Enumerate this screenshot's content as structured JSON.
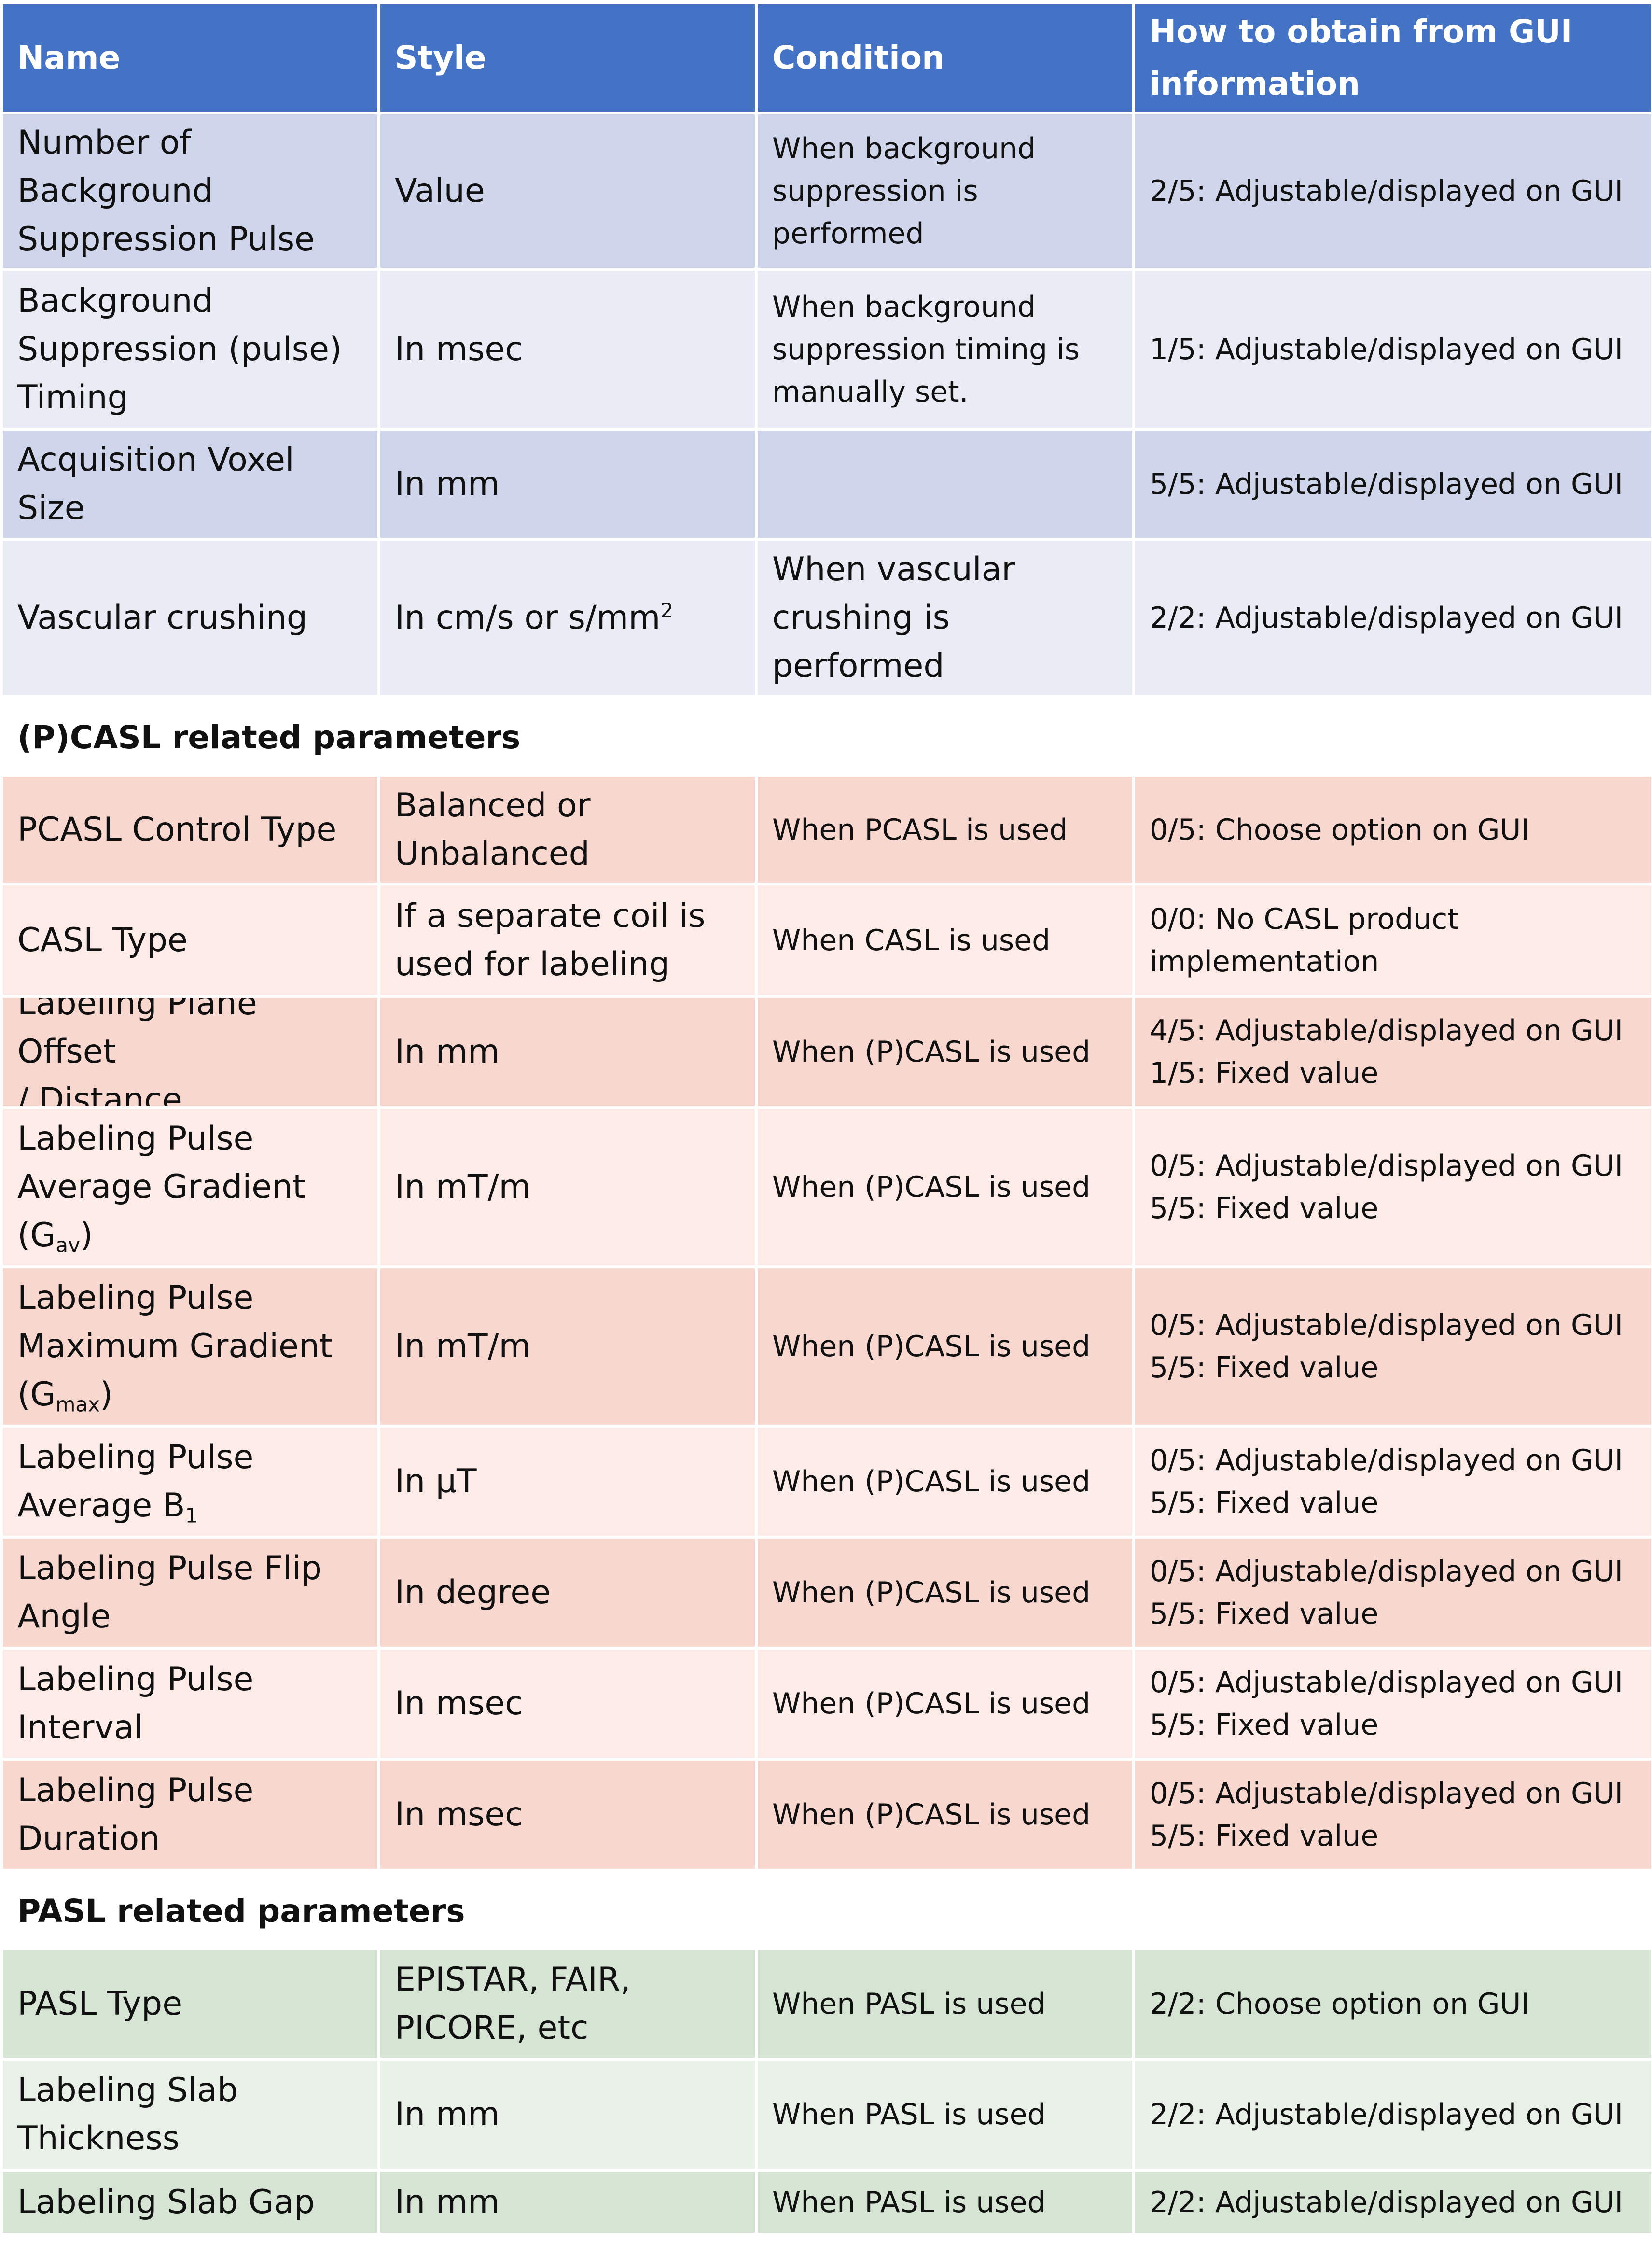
{
  "headers": [
    "Name",
    "Style",
    "Condition",
    "How to obtain from GUI information"
  ],
  "rows1": [
    {
      "name": "Number of\nBackground\nSuppression Pulse",
      "style": "Value",
      "condition": "When background\nsuppression is\nperformed",
      "how": "2/5: Adjustable/displayed on GUI"
    },
    {
      "name": "Background\nSuppression (pulse)\nTiming",
      "style": "In msec",
      "condition": "When background\nsuppression timing is\nmanually set.",
      "how": "1/5: Adjustable/displayed on GUI"
    },
    {
      "name": "Acquisition Voxel\nSize",
      "style": "In mm",
      "condition": "",
      "how": "5/5: Adjustable/displayed on GUI"
    },
    {
      "name": "Vascular crushing",
      "style": "In cm/s or s/mm",
      "style_sup": "2",
      "condition": "When vascular\ncrushing is\nperformed",
      "how": "2/2: Adjustable/displayed on GUI"
    }
  ],
  "section_pcasl": "(P)CASL related parameters",
  "rows2": [
    {
      "name": "PCASL Control Type",
      "style": "Balanced or\nUnbalanced",
      "condition": "When PCASL is used",
      "how": "0/5: Choose option on GUI"
    },
    {
      "name": "CASL Type",
      "style": "If a separate coil is\nused for labeling",
      "condition": "When CASL is used",
      "how": "0/0: No CASL product\nimplementation"
    },
    {
      "name": "Labeling Plane Offset\n/ Distance",
      "style": "In mm",
      "condition": "When (P)CASL is used",
      "how": "4/5: Adjustable/displayed on GUI\n1/5: Fixed value"
    },
    {
      "name_pre": "Labeling Pulse\nAverage Gradient\n(G",
      "name_sub": "av",
      "name_post": ")",
      "style": "In mT/m",
      "condition": "When (P)CASL is used",
      "how": "0/5: Adjustable/displayed on GUI\n5/5: Fixed value"
    },
    {
      "name_pre": "Labeling Pulse\nMaximum Gradient\n(G",
      "name_sub": "max",
      "name_post": ")",
      "style": "In mT/m",
      "condition": "When (P)CASL is used",
      "how": "0/5: Adjustable/displayed on GUI\n5/5: Fixed value"
    },
    {
      "name_pre": "Labeling Pulse\nAverage B",
      "name_sub": "1",
      "name_post": "",
      "style": "In µT",
      "condition": "When (P)CASL is used",
      "how": "0/5: Adjustable/displayed on GUI\n5/5: Fixed value"
    },
    {
      "name": "Labeling Pulse Flip\nAngle",
      "style": "In degree",
      "condition": "When (P)CASL is used",
      "how": "0/5: Adjustable/displayed on GUI\n5/5: Fixed value"
    },
    {
      "name": "Labeling Pulse\nInterval",
      "style": "In msec",
      "condition": "When (P)CASL is used",
      "how": "0/5: Adjustable/displayed on GUI\n5/5: Fixed value"
    },
    {
      "name": "Labeling Pulse\nDuration",
      "style": "In msec",
      "condition": "When (P)CASL is used",
      "how": "0/5: Adjustable/displayed on GUI\n5/5: Fixed value"
    }
  ],
  "section_pasl": "PASL related parameters",
  "rows3": [
    {
      "name": "PASL Type",
      "style": "EPISTAR, FAIR,\nPICORE, etc",
      "condition": "When PASL is used",
      "how": "2/2: Choose option on GUI"
    },
    {
      "name": "Labeling Slab\nThickness",
      "style": "In mm",
      "condition": "When PASL is used",
      "how": "2/2: Adjustable/displayed on GUI"
    },
    {
      "name": "Labeling Slab Gap",
      "style": "In mm",
      "condition": "When PASL is used",
      "how": "2/2: Adjustable/displayed on GUI"
    }
  ]
}
